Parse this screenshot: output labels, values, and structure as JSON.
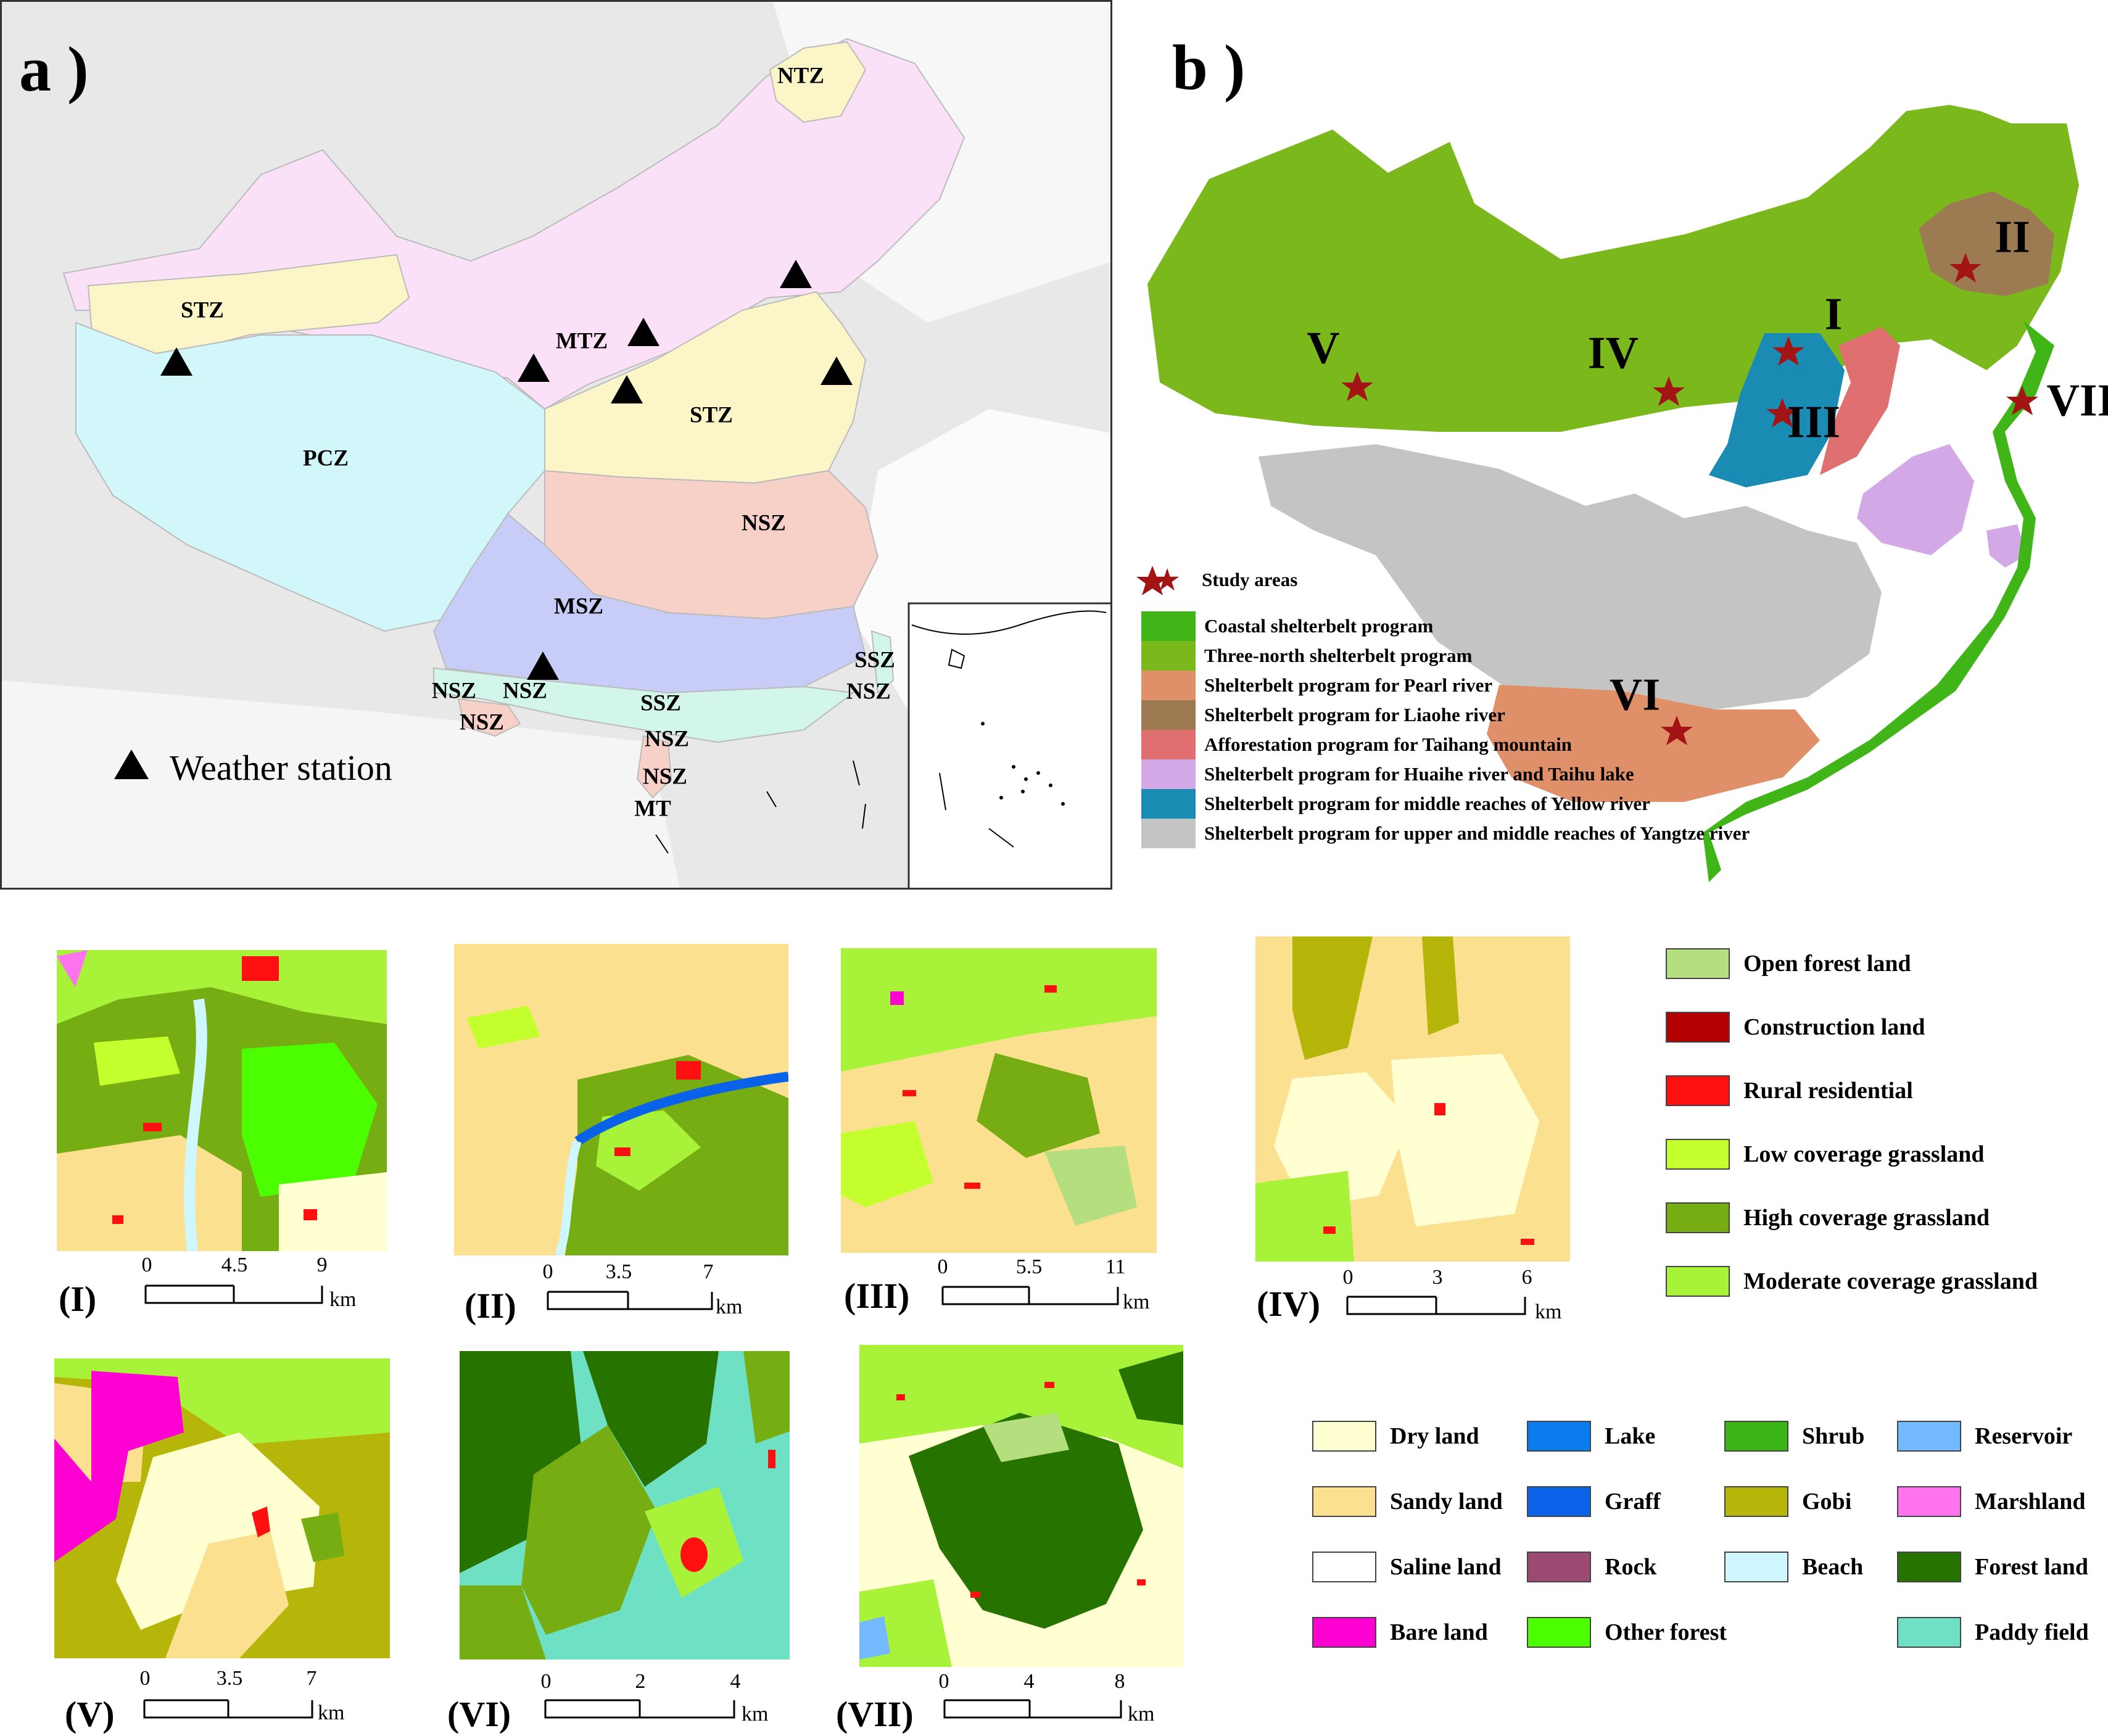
{
  "panel_a": {
    "label": "a )",
    "zones": [
      "NTZ",
      "STZ",
      "MTZ",
      "STZ",
      "PCZ",
      "NSZ",
      "MSZ",
      "NSZ",
      "NSZ",
      "NSZ",
      "SSZ",
      "SSZ",
      "NSZ",
      "NSZ",
      "NSZ",
      "MT"
    ],
    "legend_weather": "Weather station"
  },
  "panel_b": {
    "label": "b )",
    "roman_labels": [
      "I",
      "II",
      "III",
      "IV",
      "V",
      "VI",
      "VII"
    ],
    "legend": [
      {
        "label": "Study areas",
        "color": "#a31515"
      },
      {
        "label": "Coastal shelterbelt program",
        "color": "#3fb518"
      },
      {
        "label": "Three-north shelterbelt program",
        "color": "#7ab81c"
      },
      {
        "label": "Shelterbelt program for Pearl river",
        "color": "#e09068"
      },
      {
        "label": "Shelterbelt program for Liaohe river",
        "color": "#9c7a52"
      },
      {
        "label": "Afforestation program for Taihang mountain",
        "color": "#e07070"
      },
      {
        "label": "Shelterbelt program for Huaihe river and Taihu lake",
        "color": "#d2a8e6"
      },
      {
        "label": "Shelterbelt program for middle reaches of Yellow river",
        "color": "#1a8cb4"
      },
      {
        "label": "Shelterbelt program for upper and middle reaches of Yangtze river",
        "color": "#c4c4c4"
      }
    ]
  },
  "subpanels": [
    {
      "label": "(I)",
      "ticks": [
        "0",
        "4.5",
        "9"
      ],
      "unit": "km"
    },
    {
      "label": "(II)",
      "ticks": [
        "0",
        "3.5",
        "7"
      ],
      "unit": "km"
    },
    {
      "label": "(III)",
      "ticks": [
        "0",
        "5.5",
        "11"
      ],
      "unit": "km"
    },
    {
      "label": "(IV)",
      "ticks": [
        "0",
        "3",
        "6"
      ],
      "unit": "km"
    },
    {
      "label": "(V)",
      "ticks": [
        "0",
        "3.5",
        "7"
      ],
      "unit": "km"
    },
    {
      "label": "(VI)",
      "ticks": [
        "0",
        "2",
        "4"
      ],
      "unit": "km"
    },
    {
      "label": "(VII)",
      "ticks": [
        "0",
        "4",
        "8"
      ],
      "unit": "km"
    }
  ],
  "landuse_legend_a": [
    {
      "label": "Open forest land",
      "color": "#b5df7e"
    },
    {
      "label": "Construction land",
      "color": "#b50000"
    },
    {
      "label": "Rural residential",
      "color": "#ff0f0f"
    },
    {
      "label": "Low coverage grassland",
      "color": "#c4ff2e"
    },
    {
      "label": "High coverage grassland",
      "color": "#76ad12"
    },
    {
      "label": "Moderate coverage grassland",
      "color": "#a9f23a"
    }
  ],
  "landuse_legend_b": [
    {
      "label": "Dry land",
      "color": "#ffffd2"
    },
    {
      "label": "Lake",
      "color": "#0a7cf0"
    },
    {
      "label": "Shrub",
      "color": "#3ab515"
    },
    {
      "label": "Reservoir",
      "color": "#73b9ff"
    },
    {
      "label": "Sandy land",
      "color": "#fbe08f"
    },
    {
      "label": "Graff",
      "color": "#0a62e8"
    },
    {
      "label": "Gobi",
      "color": "#b5b50a"
    },
    {
      "label": "Marshland",
      "color": "#ff73ef"
    },
    {
      "label": "Saline land",
      "color": "#ffffff"
    },
    {
      "label": "Rock",
      "color": "#9c4a73"
    },
    {
      "label": "Beach",
      "color": "#cff7ff"
    },
    {
      "label": "Forest land",
      "color": "#267300"
    },
    {
      "label": "Bare land",
      "color": "#ff00d2"
    },
    {
      "label": "Other forest",
      "color": "#4cff00"
    },
    {
      "label": "Paddy field",
      "color": "#6ee0c4"
    }
  ]
}
